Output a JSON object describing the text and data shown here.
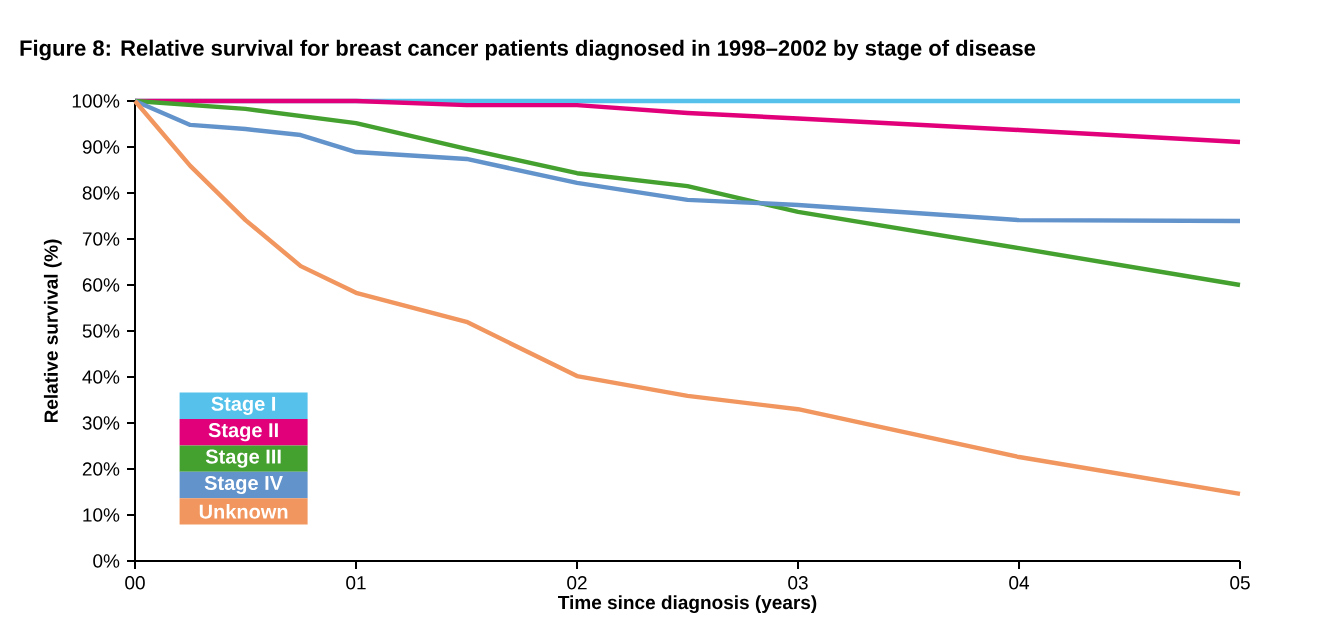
{
  "chart_data": {
    "type": "line",
    "title": "Figure 8: Relative survival for breast cancer patients diagnosed in 1998–2002 by stage of disease",
    "xlabel": "Time since diagnosis (years)",
    "ylabel": "Relative survival (%)",
    "xlim": [
      0,
      5
    ],
    "ylim": [
      0,
      100
    ],
    "xticks": [
      {
        "value": 0,
        "label": "00"
      },
      {
        "value": 1,
        "label": "01"
      },
      {
        "value": 2,
        "label": "02"
      },
      {
        "value": 3,
        "label": "03"
      },
      {
        "value": 4,
        "label": "04"
      },
      {
        "value": 5,
        "label": "05"
      }
    ],
    "yticks": [
      {
        "value": 0,
        "label": "0%"
      },
      {
        "value": 10,
        "label": "10%"
      },
      {
        "value": 20,
        "label": "20%"
      },
      {
        "value": 30,
        "label": "30%"
      },
      {
        "value": 40,
        "label": "40%"
      },
      {
        "value": 50,
        "label": "50%"
      },
      {
        "value": 60,
        "label": "60%"
      },
      {
        "value": 70,
        "label": "70%"
      },
      {
        "value": 80,
        "label": "80%"
      },
      {
        "value": 90,
        "label": "90%"
      },
      {
        "value": 100,
        "label": "100%"
      }
    ],
    "legend": "bottom left",
    "marker": "none",
    "line_style": "solid",
    "series": [
      {
        "name": "Stage I",
        "color": "#56c1ea",
        "x": [
          0,
          3,
          5
        ],
        "values": [
          100,
          100,
          100
        ]
      },
      {
        "name": "Stage II",
        "color": "#e2007a",
        "x": [
          0,
          1,
          1.5,
          2,
          2.5,
          3,
          4,
          5
        ],
        "values": [
          100,
          100,
          99.1,
          99.1,
          97.4,
          96.2,
          93.7,
          91.1
        ]
      },
      {
        "name": "Stage III",
        "color": "#45a12f",
        "x": [
          0,
          0.5,
          1,
          1.5,
          2,
          2.5,
          3,
          4,
          5
        ],
        "values": [
          100,
          98.3,
          95.2,
          89.6,
          84.3,
          81.5,
          75.9,
          68,
          60
        ]
      },
      {
        "name": "Stage IV",
        "color": "#6393cb",
        "x": [
          0,
          0.25,
          0.5,
          0.75,
          1,
          1.5,
          2,
          2.5,
          3,
          4,
          5
        ],
        "values": [
          100,
          94.8,
          93.9,
          92.6,
          88.9,
          87.4,
          82.2,
          78.5,
          77.4,
          74.1,
          73.9
        ]
      },
      {
        "name": "Unknown",
        "color": "#f1965e",
        "x": [
          0,
          0.25,
          0.5,
          0.75,
          1,
          1.5,
          2,
          2.5,
          3,
          4,
          5
        ],
        "values": [
          100,
          85.9,
          74.1,
          64.1,
          58.3,
          52,
          40.2,
          35.9,
          33,
          22.6,
          14.6
        ]
      }
    ]
  }
}
